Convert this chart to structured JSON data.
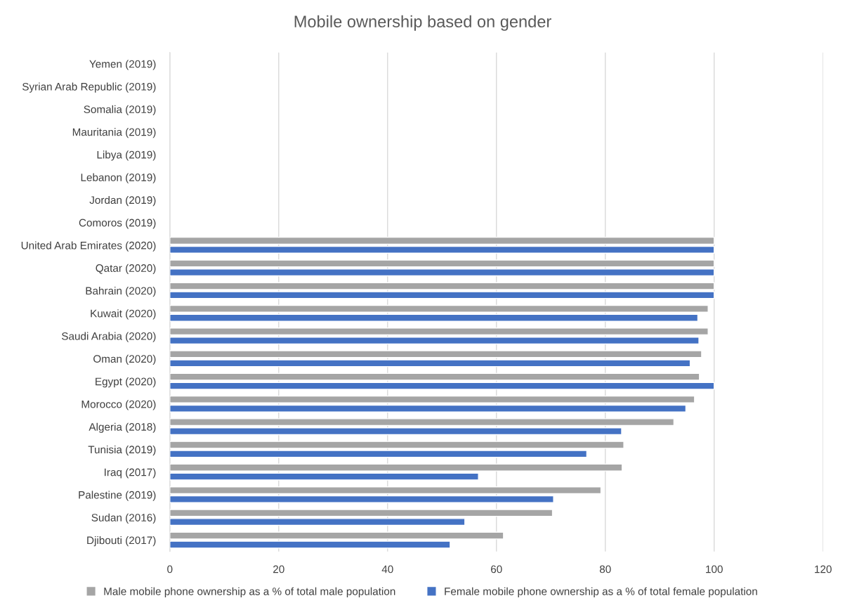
{
  "chart_data": {
    "type": "bar",
    "orientation": "horizontal",
    "title": "Mobile ownership based on gender",
    "categories": [
      "Yemen (2019)",
      "Syrian Arab Republic (2019)",
      "Somalia (2019)",
      "Mauritania (2019)",
      "Libya (2019)",
      "Lebanon (2019)",
      "Jordan (2019)",
      "Comoros (2019)",
      "United Arab Emirates (2020)",
      "Qatar (2020)",
      "Bahrain (2020)",
      "Kuwait (2020)",
      "Saudi Arabia (2020)",
      "Oman (2020)",
      "Egypt (2020)",
      "Morocco (2020)",
      "Algeria (2018)",
      "Tunisia (2019)",
      "Iraq (2017)",
      "Palestine (2019)",
      "Sudan (2016)",
      "Djibouti (2017)"
    ],
    "series": [
      {
        "name": "Male mobile phone ownership as a % of total male population",
        "color": "#a5a5a5",
        "values": [
          null,
          null,
          null,
          null,
          null,
          null,
          null,
          null,
          100,
          100,
          100,
          98.9,
          98.9,
          97.7,
          97.3,
          96.4,
          92.6,
          83.4,
          83.1,
          79.2,
          70.3,
          61.3
        ]
      },
      {
        "name": "Female mobile phone ownership as a % of total female population",
        "color": "#4472c4",
        "values": [
          null,
          null,
          null,
          null,
          null,
          null,
          null,
          null,
          100,
          100,
          100,
          97.0,
          97.2,
          95.6,
          100,
          94.8,
          83.0,
          76.6,
          56.7,
          70.5,
          54.2,
          51.5
        ]
      }
    ],
    "xlim": [
      0,
      120
    ],
    "xticks": [
      0,
      20,
      40,
      60,
      80,
      100,
      120
    ],
    "grid": "x",
    "legend": "bottom"
  }
}
